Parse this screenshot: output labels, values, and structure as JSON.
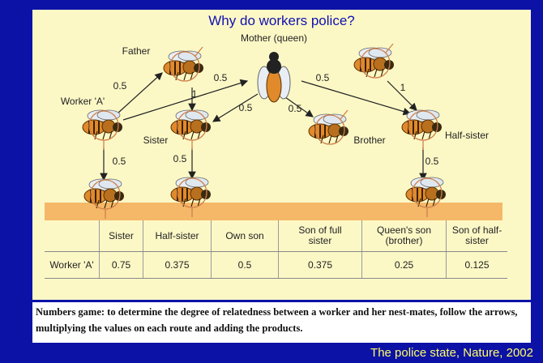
{
  "title": "Why do workers police?",
  "nodes": [
    {
      "label": "Father"
    },
    {
      "label": "Mother (queen)"
    },
    {
      "label": "Worker 'A'"
    },
    {
      "label": "Sister"
    },
    {
      "label": "Brother"
    },
    {
      "label": "Half-sister"
    }
  ],
  "edges": [
    {
      "label": "0.5"
    },
    {
      "label": "0.5"
    },
    {
      "label": "1"
    },
    {
      "label": "0.5"
    },
    {
      "label": "0.5"
    },
    {
      "label": "0.5"
    },
    {
      "label": "1"
    },
    {
      "label": "0.5"
    },
    {
      "label": "0.5"
    },
    {
      "label": "0.5"
    }
  ],
  "table": {
    "header": [
      "Sister",
      "Half-sister",
      "Own son",
      "Son of full sister",
      "Queen's son (brother)",
      "Son of half-sister"
    ],
    "row_label": "Worker 'A'",
    "row": [
      "0.75",
      "0.375",
      "0.5",
      "0.375",
      "0.25",
      "0.125"
    ]
  },
  "caption": "Numbers game: to determine the degree of relatedness between a worker and her nest-mates, follow the arrows, multiplying the values on each route and adding the products.",
  "source": "The police state, Nature, 2002"
}
